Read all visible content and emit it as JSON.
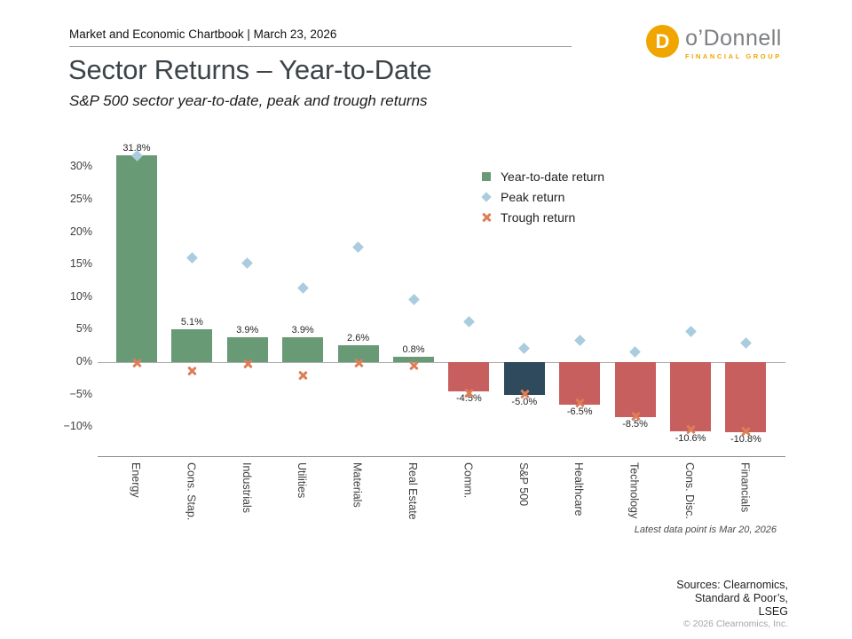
{
  "header": {
    "text": "Market and Economic Chartbook | March 23, 2026"
  },
  "logo": {
    "mark_letter": "D",
    "name": "o’Donnell",
    "tagline": "FINANCIAL GROUP",
    "brand_color": "#f0a500",
    "name_color": "#7d7f82"
  },
  "page_title": "Sector Returns – Year-to-Date",
  "page_subtitle": "S&P 500 sector year-to-date, peak and trough returns",
  "chart_data": {
    "type": "bar",
    "title": "Sector Returns – Year-to-Date",
    "categories": [
      "Energy",
      "Cons. Stap.",
      "Industrials",
      "Utilities",
      "Materials",
      "Real Estate",
      "Comm.",
      "S&P 500",
      "Healthcare",
      "Technology",
      "Cons. Disc.",
      "Financials"
    ],
    "series": [
      {
        "name": "Year-to-date return",
        "marker": "square",
        "color": "#699a76",
        "values": [
          31.8,
          5.1,
          3.9,
          3.9,
          2.6,
          0.8,
          -4.5,
          -5.0,
          -6.5,
          -8.5,
          -10.6,
          -10.8
        ]
      },
      {
        "name": "Peak return",
        "marker": "diamond",
        "color": "#a9cdde",
        "values": [
          31.8,
          16.1,
          15.3,
          11.4,
          17.7,
          9.7,
          6.2,
          2.1,
          3.3,
          1.6,
          4.7,
          2.9
        ]
      },
      {
        "name": "Trough return",
        "marker": "x",
        "color": "#de7e57",
        "values": [
          -0.1,
          -1.3,
          -0.2,
          -2.0,
          -0.1,
          -0.5,
          -4.7,
          -4.9,
          -6.3,
          -8.3,
          -10.4,
          -10.6
        ]
      }
    ],
    "bar_labels": [
      "31.8%",
      "5.1%",
      "3.9%",
      "3.9%",
      "2.6%",
      "0.8%",
      "-4.5%",
      "-5.0%",
      "-6.5%",
      "-8.5%",
      "-10.6%",
      "-10.8%"
    ],
    "bar_colors": [
      "#699a76",
      "#699a76",
      "#699a76",
      "#699a76",
      "#699a76",
      "#699a76",
      "#c75f5e",
      "#2f4a5c",
      "#c75f5e",
      "#c75f5e",
      "#c75f5e",
      "#c75f5e"
    ],
    "yticks": [
      {
        "v": 30,
        "label": "30%"
      },
      {
        "v": 25,
        "label": "25%"
      },
      {
        "v": 20,
        "label": "20%"
      },
      {
        "v": 15,
        "label": "15%"
      },
      {
        "v": 10,
        "label": "10%"
      },
      {
        "v": 5,
        "label": "5%"
      },
      {
        "v": 0,
        "label": "0%"
      },
      {
        "v": -5,
        "label": "−5%"
      },
      {
        "v": -10,
        "label": "−10%"
      }
    ],
    "ylim": [
      -14.6,
      33.2
    ],
    "xlabel": "",
    "ylabel": "",
    "grid": false,
    "legend_position": "inside-upper-right"
  },
  "footnote": "Latest data point is Mar 20, 2026",
  "sources_lines": [
    "Sources: Clearnomics,",
    "Standard & Poor’s,",
    "LSEG"
  ],
  "copyright": "© 2026 Clearnomics, Inc."
}
